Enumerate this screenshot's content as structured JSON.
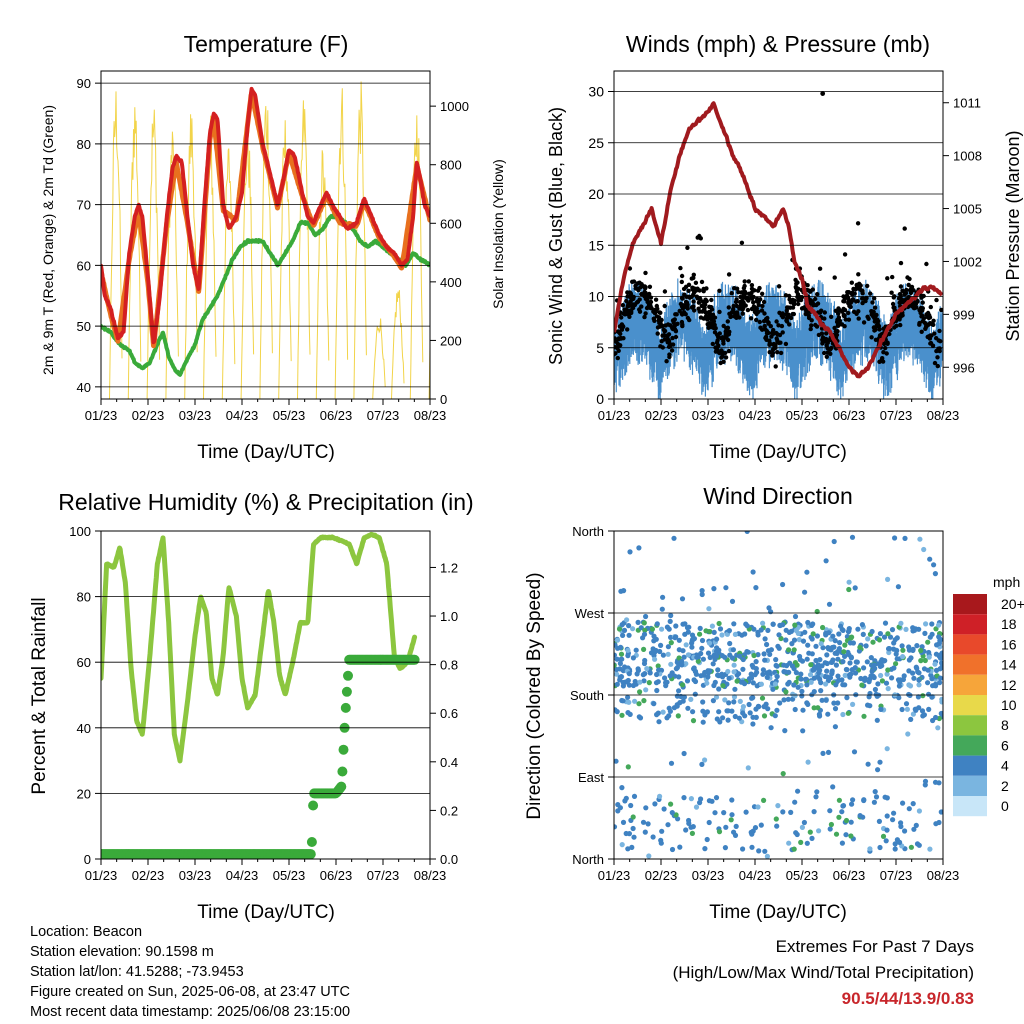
{
  "footer": {
    "location": "Location: Beacon",
    "elevation": "Station elevation: 90.1598 m",
    "latlon": "Station lat/lon: 41.5288; -73.9453",
    "created": "Figure created on Sun, 2025-06-08, at 23:47 UTC",
    "recent": "Most recent data timestamp: 2025/06/08 23:15:00",
    "extremes_title": "Extremes For Past 7 Days",
    "extremes_sub": "(High/Low/Max Wind/Total Precipitation)",
    "extremes_values": "90.5/44/13.9/0.83"
  },
  "chart_data": [
    {
      "type": "line",
      "title": "Temperature (F)",
      "xlabel": "Time (Day/UTC)",
      "ylabel": "2m & 9m T (Red, Orange) & 2m Td (Green)",
      "y2label": "Solar Insolation (Yellow)",
      "xticks": [
        "01/23",
        "02/23",
        "03/23",
        "04/23",
        "05/23",
        "06/23",
        "07/23",
        "08/23"
      ],
      "ylim": [
        38,
        92
      ],
      "yticks": [
        40,
        50,
        60,
        70,
        80,
        90
      ],
      "y2lim": [
        0,
        1120
      ],
      "y2ticks": [
        0,
        200,
        400,
        600,
        800,
        1000
      ],
      "grid": true,
      "series": [
        {
          "color": "#d42020",
          "points": [
            [
              0,
              60
            ],
            [
              0.2,
              55
            ],
            [
              0.5,
              53
            ],
            [
              0.9,
              48
            ],
            [
              1.2,
              49
            ],
            [
              1.5,
              62
            ],
            [
              1.8,
              68
            ],
            [
              2,
              70
            ],
            [
              2.2,
              68
            ],
            [
              2.5,
              58
            ],
            [
              2.8,
              47
            ],
            [
              3.1,
              54
            ],
            [
              3.5,
              68
            ],
            [
              3.8,
              76
            ],
            [
              4,
              78
            ],
            [
              4.3,
              77
            ],
            [
              4.6,
              68
            ],
            [
              4.9,
              60
            ],
            [
              5.2,
              56
            ],
            [
              5.5,
              70
            ],
            [
              5.8,
              82
            ],
            [
              6,
              85
            ],
            [
              6.2,
              84
            ],
            [
              6.5,
              70
            ],
            [
              6.8,
              66
            ],
            [
              7.2,
              68
            ],
            [
              7.5,
              72
            ],
            [
              7.8,
              83
            ],
            [
              8,
              89
            ],
            [
              8.2,
              88
            ],
            [
              8.6,
              80
            ],
            [
              9,
              75
            ],
            [
              9.4,
              70
            ],
            [
              9.7,
              74
            ],
            [
              10,
              79
            ],
            [
              10.3,
              78
            ],
            [
              10.7,
              72
            ],
            [
              11,
              68
            ],
            [
              11.3,
              67
            ],
            [
              11.7,
              70
            ],
            [
              12,
              72
            ],
            [
              12.3,
              70
            ],
            [
              12.7,
              68
            ],
            [
              13.1,
              66
            ],
            [
              13.6,
              67
            ],
            [
              14,
              71
            ],
            [
              14.4,
              68
            ],
            [
              14.8,
              65
            ],
            [
              15.2,
              63
            ],
            [
              15.6,
              62
            ],
            [
              16,
              60
            ],
            [
              16.3,
              61
            ],
            [
              16.6,
              68
            ],
            [
              16.8,
              77
            ],
            [
              17,
              74
            ],
            [
              17.2,
              70
            ],
            [
              17.5,
              68
            ]
          ]
        },
        {
          "color": "#e8701e",
          "points": [
            [
              0,
              59
            ],
            [
              0.5,
              52
            ],
            [
              0.9,
              47.5
            ],
            [
              1.5,
              61
            ],
            [
              2,
              69
            ],
            [
              2.5,
              57
            ],
            [
              2.8,
              46.5
            ],
            [
              3.5,
              67
            ],
            [
              4,
              77
            ],
            [
              4.6,
              67
            ],
            [
              5.2,
              55.5
            ],
            [
              5.8,
              81
            ],
            [
              6,
              84
            ],
            [
              6.5,
              69
            ],
            [
              7.2,
              67.5
            ],
            [
              8,
              88.5
            ],
            [
              8.6,
              79.5
            ],
            [
              9.4,
              69.5
            ],
            [
              10,
              78.5
            ],
            [
              10.7,
              71.5
            ],
            [
              11.3,
              66.5
            ],
            [
              12,
              71.5
            ],
            [
              12.7,
              67
            ],
            [
              13.6,
              66.5
            ],
            [
              14,
              70.5
            ],
            [
              14.8,
              64.5
            ],
            [
              15.6,
              61.5
            ],
            [
              16,
              59.5
            ],
            [
              16.8,
              76.5
            ],
            [
              17.5,
              67.5
            ]
          ]
        },
        {
          "color": "#3aaa3a",
          "points": [
            [
              0,
              50
            ],
            [
              0.5,
              49
            ],
            [
              1,
              47
            ],
            [
              1.5,
              46
            ],
            [
              1.8,
              44
            ],
            [
              2.2,
              43
            ],
            [
              2.6,
              44
            ],
            [
              3,
              47
            ],
            [
              3.3,
              49
            ],
            [
              3.6,
              45
            ],
            [
              3.9,
              43
            ],
            [
              4.2,
              42
            ],
            [
              4.5,
              44
            ],
            [
              5,
              47
            ],
            [
              5.4,
              51
            ],
            [
              5.8,
              53
            ],
            [
              6.2,
              55
            ],
            [
              6.6,
              58
            ],
            [
              7,
              61
            ],
            [
              7.4,
              63
            ],
            [
              7.8,
              64
            ],
            [
              8.2,
              64
            ],
            [
              8.6,
              64
            ],
            [
              9,
              62
            ],
            [
              9.4,
              60
            ],
            [
              9.8,
              62
            ],
            [
              10.2,
              64
            ],
            [
              10.6,
              67
            ],
            [
              11,
              67
            ],
            [
              11.4,
              65
            ],
            [
              11.8,
              66
            ],
            [
              12.2,
              68
            ],
            [
              12.6,
              68
            ],
            [
              13,
              67
            ],
            [
              13.4,
              66
            ],
            [
              13.8,
              64
            ],
            [
              14.2,
              63
            ],
            [
              14.6,
              64
            ],
            [
              15,
              63
            ],
            [
              15.4,
              62
            ],
            [
              15.8,
              61
            ],
            [
              16.2,
              60
            ],
            [
              16.6,
              62
            ],
            [
              17,
              61
            ],
            [
              17.5,
              60
            ]
          ]
        }
      ],
      "solar_peaks_wm2": [
        0,
        1100,
        1080,
        1040,
        960,
        1020,
        1000,
        900,
        980,
        1100,
        980,
        1060,
        880,
        1100,
        1100,
        300,
        400,
        1040,
        880
      ]
    },
    {
      "type": "scatter",
      "title": "Winds (mph) & Pressure (mb)",
      "xlabel": "Time (Day/UTC)",
      "ylabel": "Sonic Wind & Gust (Blue, Black)",
      "y2label": "Station Pressure (Maroon)",
      "xticks": [
        "01/23",
        "02/23",
        "03/23",
        "04/23",
        "05/23",
        "06/23",
        "07/23",
        "08/23"
      ],
      "ylim": [
        0,
        32
      ],
      "yticks": [
        0,
        5,
        10,
        15,
        20,
        25,
        30
      ],
      "y2lim": [
        994.2,
        1012.8
      ],
      "y2ticks": [
        996,
        999,
        1002,
        1005,
        1008,
        1011
      ],
      "grid": true,
      "pressure_mb": [
        [
          0,
          998
        ],
        [
          0.5,
          1001
        ],
        [
          1,
          1003
        ],
        [
          1.5,
          1004
        ],
        [
          2,
          1005
        ],
        [
          2.5,
          1003
        ],
        [
          3,
          1006
        ],
        [
          3.5,
          1008
        ],
        [
          4,
          1009.5
        ],
        [
          4.5,
          1010
        ],
        [
          5,
          1010.5
        ],
        [
          5.3,
          1011
        ],
        [
          5.6,
          1010
        ],
        [
          6,
          1009
        ],
        [
          6.3,
          1008
        ],
        [
          6.6,
          1007.5
        ],
        [
          7,
          1006.5
        ],
        [
          7.5,
          1005
        ],
        [
          8,
          1004.5
        ],
        [
          8.5,
          1004
        ],
        [
          9,
          1005
        ],
        [
          9.3,
          1004
        ],
        [
          9.6,
          1002
        ],
        [
          10,
          1001
        ],
        [
          10.3,
          999.5
        ],
        [
          10.7,
          999
        ],
        [
          11,
          998.5
        ],
        [
          11.5,
          998
        ],
        [
          12,
          997
        ],
        [
          12.5,
          996
        ],
        [
          13,
          995.5
        ],
        [
          13.5,
          996
        ],
        [
          14,
          997
        ],
        [
          14.5,
          998
        ],
        [
          15,
          999
        ],
        [
          15.5,
          999.5
        ],
        [
          16,
          1000
        ],
        [
          16.5,
          1000.5
        ],
        [
          17,
          1000.5
        ],
        [
          17.5,
          1000
        ]
      ],
      "gust_max_mph": 29.8
    },
    {
      "type": "line",
      "title": "Relative Humidity (%) & Precipitation (in)",
      "xlabel": "Time (Day/UTC)",
      "ylabel": "Percent & Total Rainfall",
      "xticks": [
        "01/23",
        "02/23",
        "03/23",
        "04/23",
        "05/23",
        "06/23",
        "07/23",
        "08/23"
      ],
      "ylim": [
        0,
        100
      ],
      "yticks": [
        0,
        20,
        40,
        60,
        80,
        100
      ],
      "y2lim": [
        0,
        1.35
      ],
      "y2ticks": [
        "0.0",
        "0.2",
        "0.4",
        "0.6",
        "0.8",
        "1.0",
        "1.2"
      ],
      "grid": true,
      "series": [
        {
          "color": "#8cc63f",
          "points": [
            [
              0,
              55
            ],
            [
              0.3,
              90
            ],
            [
              0.7,
              89
            ],
            [
              1,
              95
            ],
            [
              1.3,
              84
            ],
            [
              1.6,
              58
            ],
            [
              1.9,
              42
            ],
            [
              2.2,
              38
            ],
            [
              2.6,
              62
            ],
            [
              3,
              90
            ],
            [
              3.3,
              98
            ],
            [
              3.6,
              72
            ],
            [
              3.9,
              38
            ],
            [
              4.2,
              30
            ],
            [
              4.6,
              48
            ],
            [
              5,
              68
            ],
            [
              5.3,
              80
            ],
            [
              5.6,
              75
            ],
            [
              5.9,
              55
            ],
            [
              6.2,
              50
            ],
            [
              6.5,
              62
            ],
            [
              6.8,
              83
            ],
            [
              7.2,
              74
            ],
            [
              7.5,
              55
            ],
            [
              7.8,
              46
            ],
            [
              8.2,
              50
            ],
            [
              8.6,
              68
            ],
            [
              8.9,
              82
            ],
            [
              9.2,
              72
            ],
            [
              9.5,
              56
            ],
            [
              9.8,
              50
            ],
            [
              10.2,
              60
            ],
            [
              10.6,
              72
            ],
            [
              11,
              72
            ],
            [
              11.3,
              96
            ],
            [
              11.7,
              98
            ],
            [
              12.3,
              98
            ],
            [
              12.8,
              97
            ],
            [
              13.2,
              96
            ],
            [
              13.6,
              90
            ],
            [
              14,
              98
            ],
            [
              14.4,
              99
            ],
            [
              14.8,
              98
            ],
            [
              15.2,
              90
            ],
            [
              15.6,
              62
            ],
            [
              15.9,
              58
            ],
            [
              16.3,
              60
            ],
            [
              16.7,
              68
            ]
          ]
        },
        {
          "color": "#3aaa3a",
          "points": [
            [
              0,
              0.02
            ],
            [
              1,
              0.02
            ],
            [
              5,
              0.02
            ],
            [
              10,
              0.02
            ],
            [
              11.2,
              0.02
            ],
            [
              11.3,
              0.27
            ],
            [
              12,
              0.27
            ],
            [
              12.5,
              0.27
            ],
            [
              12.8,
              0.3
            ],
            [
              13,
              0.6
            ],
            [
              13.2,
              0.82
            ],
            [
              14,
              0.82
            ],
            [
              15,
              0.82
            ],
            [
              16.7,
              0.82
            ]
          ]
        }
      ]
    },
    {
      "type": "scatter",
      "title": "Wind Direction",
      "xlabel": "Time (Day/UTC)",
      "ylabel": "Direction (Colored By Speed)",
      "xticks": [
        "01/23",
        "02/23",
        "03/23",
        "04/23",
        "05/23",
        "06/23",
        "07/23",
        "08/23"
      ],
      "yticks": [
        "North",
        "East",
        "South",
        "West",
        "North"
      ],
      "grid": true,
      "colorbar": {
        "title": "mph",
        "labels": [
          "20+",
          "18",
          "16",
          "14",
          "12",
          "10",
          "8",
          "6",
          "4",
          "2",
          "0"
        ],
        "colors": [
          "#a8181c",
          "#cf2027",
          "#e8492b",
          "#f0712b",
          "#f6a53a",
          "#e8d94a",
          "#8cc63f",
          "#44a85a",
          "#3f82c2",
          "#7ab5e0",
          "#c8e6f8"
        ]
      }
    }
  ]
}
